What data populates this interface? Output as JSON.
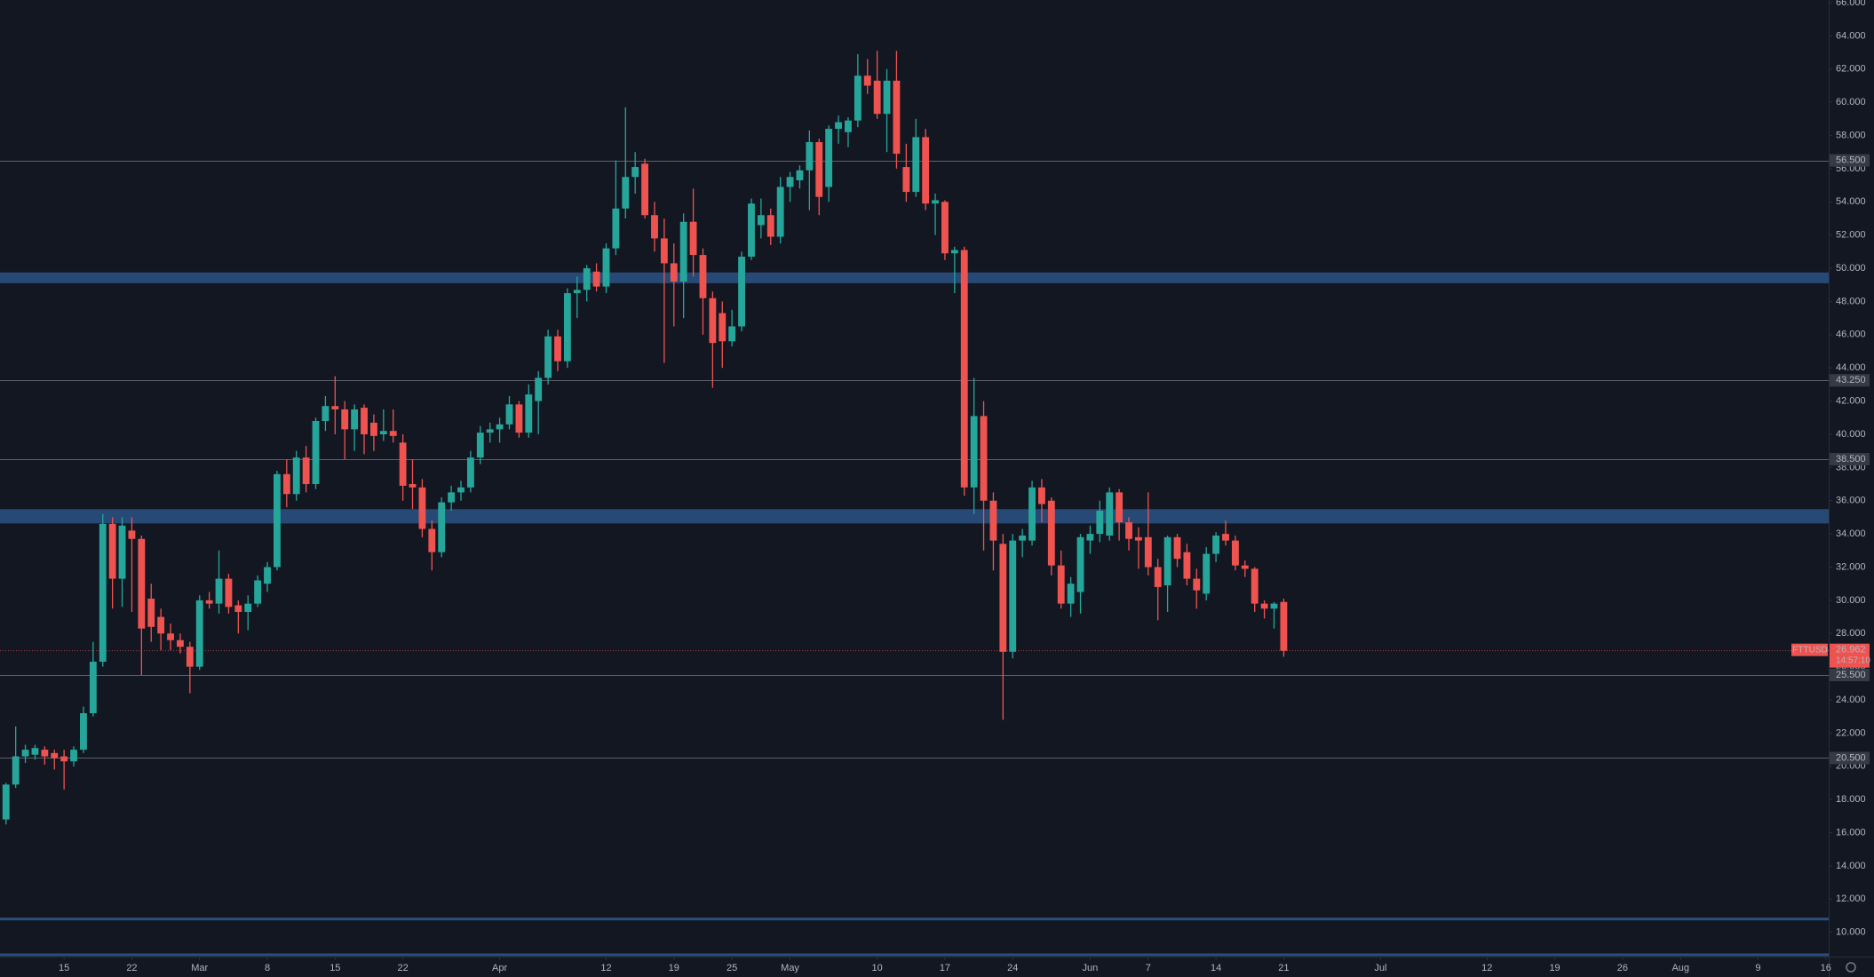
{
  "chart_data": {
    "type": "candlestick",
    "symbol": "FTTUSD",
    "countdown": "14:57:10",
    "last_price": 26.962,
    "up_color": "#26a69a",
    "down_color": "#ef5350",
    "open": [
      16.8,
      18.9,
      20.6,
      20.7,
      21.0,
      20.8,
      20.6,
      20.3,
      21.0,
      23.2,
      26.3,
      34.6,
      31.3,
      34.2,
      33.7,
      30.1,
      29.0,
      28.0,
      27.6,
      27.2,
      26.0,
      30.0,
      29.8,
      31.3,
      29.7,
      29.3,
      29.8,
      31.0,
      32.0,
      37.6,
      36.4,
      38.6,
      37.0,
      40.8,
      41.7,
      41.5,
      40.3,
      41.6,
      40.7,
      40.0,
      40.2,
      39.5,
      37.0,
      36.8,
      34.3,
      32.9,
      35.9,
      36.5,
      36.8,
      38.6,
      40.1,
      40.3,
      40.6,
      41.8,
      40.1,
      42.0,
      43.4,
      45.9,
      44.4,
      48.5,
      48.7,
      49.8,
      48.9,
      51.2,
      53.6,
      55.5,
      56.3,
      53.2,
      51.8,
      50.3,
      49.2,
      52.8,
      50.8,
      48.2,
      47.3,
      45.6,
      46.5,
      50.7,
      52.6,
      53.2,
      51.9,
      54.9,
      55.3,
      55.9,
      57.6,
      54.9,
      58.4,
      58.2,
      58.9,
      61.6,
      61.3,
      59.3,
      61.3,
      56.1,
      54.6,
      57.9,
      53.9,
      54.0,
      50.9,
      51.1,
      36.8,
      41.1,
      36.0,
      33.4,
      26.9,
      33.6,
      33.6,
      36.8,
      36.0,
      32.1,
      29.8,
      30.5,
      33.6,
      34.0,
      33.9,
      36.5,
      34.7,
      33.8,
      33.8,
      32.0,
      30.9,
      33.8,
      32.9,
      31.3,
      30.4,
      32.8,
      34.0,
      33.6,
      32.1,
      31.9,
      29.8,
      29.5,
      29.9
    ],
    "high": [
      19.0,
      22.4,
      21.3,
      21.3,
      21.2,
      21.0,
      21.0,
      21.2,
      23.6,
      27.5,
      35.2,
      35.0,
      35.0,
      35.0,
      33.9,
      31.0,
      29.5,
      28.6,
      28.0,
      27.5,
      30.3,
      30.5,
      33.0,
      31.6,
      30.0,
      30.3,
      31.5,
      32.3,
      37.8,
      38.5,
      39.0,
      39.3,
      41.0,
      42.3,
      43.5,
      42.0,
      41.8,
      41.8,
      41.2,
      41.5,
      41.5,
      40.0,
      38.5,
      37.3,
      34.8,
      36.2,
      36.9,
      37.2,
      39.0,
      40.5,
      40.7,
      41.0,
      42.3,
      42.0,
      43.0,
      43.8,
      46.3,
      46.3,
      48.8,
      49.5,
      50.2,
      50.3,
      51.5,
      56.5,
      59.7,
      57.0,
      56.6,
      54.0,
      53.0,
      51.5,
      53.3,
      54.8,
      51.2,
      48.6,
      48.0,
      47.5,
      51.0,
      54.2,
      54.2,
      53.6,
      55.5,
      55.8,
      56.2,
      58.3,
      57.8,
      58.6,
      59.2,
      59.1,
      62.9,
      62.6,
      63.1,
      62.0,
      63.1,
      57.5,
      59.0,
      58.4,
      54.5,
      54.1,
      51.3,
      51.3,
      43.4,
      42.0,
      36.5,
      34.0,
      34.0,
      34.3,
      37.2,
      37.3,
      36.2,
      33.0,
      31.4,
      34.0,
      34.5,
      36.0,
      36.8,
      36.7,
      35.0,
      34.4,
      36.5,
      32.5,
      33.9,
      34.0,
      33.4,
      31.9,
      33.2,
      34.1,
      34.8,
      33.9,
      32.4,
      32.0,
      30.0,
      29.9,
      30.1
    ],
    "low": [
      16.5,
      18.7,
      20.2,
      20.4,
      20.1,
      19.8,
      18.6,
      20.0,
      20.8,
      23.0,
      26.0,
      29.5,
      29.6,
      29.3,
      25.5,
      27.5,
      27.0,
      27.0,
      26.8,
      24.4,
      25.8,
      29.5,
      29.2,
      29.2,
      28.0,
      28.2,
      29.6,
      30.5,
      31.8,
      35.6,
      36.0,
      36.5,
      36.7,
      40.2,
      40.0,
      38.5,
      39.0,
      38.8,
      39.0,
      39.6,
      39.5,
      36.0,
      35.5,
      33.8,
      31.8,
      32.6,
      35.4,
      36.0,
      36.5,
      38.2,
      39.5,
      39.5,
      40.3,
      39.8,
      39.8,
      40.0,
      43.0,
      43.8,
      44.0,
      47.0,
      48.0,
      48.6,
      48.5,
      50.8,
      53.0,
      54.5,
      53.0,
      51.0,
      44.3,
      46.5,
      47.0,
      49.5,
      46.0,
      42.8,
      44.0,
      45.3,
      46.2,
      50.5,
      51.8,
      51.4,
      51.5,
      54.0,
      54.8,
      53.5,
      53.2,
      54.0,
      57.5,
      57.3,
      58.5,
      60.5,
      59.0,
      57.0,
      56.0,
      54.0,
      54.3,
      53.5,
      52.0,
      50.5,
      48.5,
      36.3,
      35.2,
      33.0,
      31.8,
      22.8,
      26.5,
      32.6,
      33.3,
      34.7,
      31.5,
      29.5,
      29.0,
      29.2,
      32.8,
      33.5,
      33.6,
      33.6,
      33.0,
      31.9,
      31.5,
      28.8,
      29.3,
      32.0,
      30.9,
      29.5,
      30.0,
      32.3,
      33.3,
      31.8,
      31.4,
      29.3,
      28.9,
      28.3,
      26.6
    ],
    "close": [
      18.9,
      20.6,
      21.0,
      21.1,
      20.6,
      20.5,
      20.3,
      21.0,
      23.2,
      26.3,
      34.6,
      31.3,
      34.5,
      33.7,
      28.3,
      28.4,
      28.0,
      27.6,
      27.2,
      26.0,
      30.0,
      29.8,
      31.3,
      29.6,
      29.3,
      29.8,
      31.2,
      32.0,
      37.6,
      36.4,
      38.6,
      37.0,
      40.8,
      41.7,
      41.5,
      40.3,
      41.5,
      40.0,
      39.9,
      40.2,
      39.9,
      36.9,
      36.8,
      34.3,
      32.9,
      35.9,
      36.5,
      36.8,
      38.6,
      40.1,
      40.3,
      40.6,
      41.8,
      40.1,
      42.4,
      43.4,
      45.9,
      44.4,
      48.5,
      48.7,
      50.0,
      48.9,
      51.2,
      53.6,
      55.5,
      56.1,
      53.2,
      51.8,
      50.3,
      49.2,
      52.8,
      50.8,
      48.2,
      45.5,
      45.6,
      46.5,
      50.7,
      53.9,
      53.2,
      51.9,
      54.9,
      55.5,
      55.9,
      57.6,
      54.3,
      58.4,
      58.8,
      58.9,
      61.6,
      61.0,
      59.3,
      61.3,
      56.9,
      54.6,
      57.9,
      53.9,
      54.1,
      50.9,
      51.1,
      36.8,
      41.1,
      36.0,
      33.6,
      26.9,
      33.6,
      33.9,
      36.8,
      35.8,
      32.1,
      29.8,
      31.0,
      33.8,
      34.0,
      35.4,
      36.5,
      34.7,
      33.7,
      33.6,
      32.0,
      30.8,
      33.8,
      32.5,
      31.3,
      30.6,
      32.8,
      33.9,
      33.6,
      32.1,
      31.9,
      29.8,
      29.5,
      29.8,
      26.962
    ],
    "xlim": [
      -0.62,
      188.3
    ],
    "xticks": [
      {
        "value": 6,
        "label": "15"
      },
      {
        "value": 13,
        "label": "22"
      },
      {
        "value": 20,
        "label": "Mar"
      },
      {
        "value": 27,
        "label": "8"
      },
      {
        "value": 34,
        "label": "15"
      },
      {
        "value": 41,
        "label": "22"
      },
      {
        "value": 51,
        "label": "Apr"
      },
      {
        "value": 62,
        "label": "12"
      },
      {
        "value": 69,
        "label": "19"
      },
      {
        "value": 75,
        "label": "25"
      },
      {
        "value": 81,
        "label": "May"
      },
      {
        "value": 90,
        "label": "10"
      },
      {
        "value": 97,
        "label": "17"
      },
      {
        "value": 104,
        "label": "24"
      },
      {
        "value": 112,
        "label": "Jun"
      },
      {
        "value": 118,
        "label": "7"
      },
      {
        "value": 125,
        "label": "14"
      },
      {
        "value": 132,
        "label": "21"
      },
      {
        "value": 142,
        "label": "Jul"
      },
      {
        "value": 153,
        "label": "12"
      },
      {
        "value": 160,
        "label": "19"
      },
      {
        "value": 167,
        "label": "26"
      },
      {
        "value": 173,
        "label": "Aug"
      },
      {
        "value": 181,
        "label": "9"
      },
      {
        "value": 188,
        "label": "16"
      }
    ],
    "ylim": [
      8.54,
      66.16
    ],
    "yticks": [
      {
        "value": 10,
        "label": "10.000"
      },
      {
        "value": 12,
        "label": "12.000"
      },
      {
        "value": 14,
        "label": "14.000"
      },
      {
        "value": 16,
        "label": "16.000"
      },
      {
        "value": 18,
        "label": "18.000"
      },
      {
        "value": 20,
        "label": "20.000"
      },
      {
        "value": 22,
        "label": "22.000"
      },
      {
        "value": 24,
        "label": "24.000"
      },
      {
        "value": 26,
        "label": "26.000"
      },
      {
        "value": 28,
        "label": "28.000"
      },
      {
        "value": 30,
        "label": "30.000"
      },
      {
        "value": 32,
        "label": "32.000"
      },
      {
        "value": 34,
        "label": "34.000"
      },
      {
        "value": 36,
        "label": "36.000"
      },
      {
        "value": 38,
        "label": "38.000"
      },
      {
        "value": 40,
        "label": "40.000"
      },
      {
        "value": 42,
        "label": "42.000"
      },
      {
        "value": 44,
        "label": "44.000"
      },
      {
        "value": 46,
        "label": "46.000"
      },
      {
        "value": 48,
        "label": "48.000"
      },
      {
        "value": 50,
        "label": "50.000"
      },
      {
        "value": 52,
        "label": "52.000"
      },
      {
        "value": 54,
        "label": "54.000"
      },
      {
        "value": 56,
        "label": "56.000"
      },
      {
        "value": 58,
        "label": "58.000"
      },
      {
        "value": 60,
        "label": "60.000"
      },
      {
        "value": 62,
        "label": "62.000"
      },
      {
        "value": 64,
        "label": "64.000"
      },
      {
        "value": 66,
        "label": "66.000"
      }
    ],
    "levels": [
      {
        "value": 56.5,
        "label": "56.500"
      },
      {
        "value": 43.25,
        "label": "43.250"
      },
      {
        "value": 38.5,
        "label": "38.500"
      },
      {
        "value": 25.5,
        "label": "25.500"
      },
      {
        "value": 20.5,
        "label": "20.500"
      }
    ],
    "zones": [
      [
        49.1,
        49.75
      ],
      [
        34.63,
        35.49
      ]
    ],
    "zone_color": "#2a4f7f",
    "support_lines": [
      10.8,
      8.65
    ]
  }
}
